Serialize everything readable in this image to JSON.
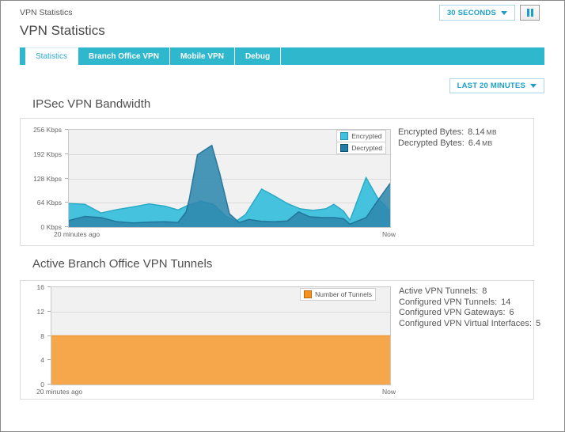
{
  "page": {
    "breadcrumb": "VPN Statistics",
    "title": "VPN Statistics",
    "refresh_interval": "30 SECONDS",
    "time_range": "LAST 20 MINUTES"
  },
  "tabs": [
    {
      "label": "Statistics",
      "active": true
    },
    {
      "label": "Branch Office VPN",
      "active": false
    },
    {
      "label": "Mobile VPN",
      "active": false
    },
    {
      "label": "Debug",
      "active": false
    }
  ],
  "sections": [
    {
      "title": "IPSec VPN Bandwidth",
      "stats": [
        {
          "label": "Encrypted Bytes:",
          "value": "8.14",
          "unit": "MB"
        },
        {
          "label": "Decrypted Bytes:",
          "value": "6.4",
          "unit": "MB"
        }
      ]
    },
    {
      "title": "Active Branch Office VPN Tunnels",
      "stats": [
        {
          "label": "Active VPN Tunnels:",
          "value": "8"
        },
        {
          "label": "Configured VPN Tunnels:",
          "value": "14"
        },
        {
          "label": "Configured VPN Gateways:",
          "value": "6"
        },
        {
          "label": "Configured VPN Virtual Interfaces:",
          "value": "5"
        }
      ]
    }
  ],
  "colors": {
    "tab_teal": "#2eb7cd",
    "accent_teal_text": "#1b9fc6",
    "encrypted": "#45c2de",
    "decrypted": "#3087af",
    "tunnels_orange": "#f7a74b"
  },
  "chart_data": [
    {
      "type": "area",
      "title": "IPSec VPN Bandwidth",
      "xlabel_left": "20 minutes ago",
      "xlabel_right": "Now",
      "x_range_minutes": 20,
      "ylim": [
        0,
        256
      ],
      "yticks": [
        0,
        64,
        128,
        192,
        256
      ],
      "ytick_labels": [
        "0 Kbps",
        "64 Kbps",
        "128 Kbps",
        "192 Kbps",
        "256 Kbps"
      ],
      "grid": true,
      "legend_position": "top-right",
      "series": [
        {
          "name": "Encrypted",
          "color": "#45c2de",
          "stroke": "#2aaac6",
          "swatch": "#3fc0dd",
          "swatch_border": "#2a93ad",
          "opacity": 1,
          "points": [
            [
              0,
              62
            ],
            [
              0.05,
              60
            ],
            [
              0.1,
              37
            ],
            [
              0.15,
              46
            ],
            [
              0.2,
              53
            ],
            [
              0.25,
              61
            ],
            [
              0.3,
              55
            ],
            [
              0.34,
              45
            ],
            [
              0.37,
              57
            ],
            [
              0.41,
              68
            ],
            [
              0.45,
              60
            ],
            [
              0.49,
              28
            ],
            [
              0.52,
              15
            ],
            [
              0.55,
              33
            ],
            [
              0.6,
              100
            ],
            [
              0.64,
              82
            ],
            [
              0.68,
              62
            ],
            [
              0.72,
              48
            ],
            [
              0.76,
              44
            ],
            [
              0.8,
              48
            ],
            [
              0.825,
              60
            ],
            [
              0.855,
              42
            ],
            [
              0.875,
              18
            ],
            [
              0.925,
              130
            ],
            [
              0.96,
              78
            ],
            [
              1,
              42
            ]
          ]
        },
        {
          "name": "Decrypted",
          "color": "#2f87ae",
          "stroke": "#1e6f95",
          "swatch": "#1f7da8",
          "swatch_border": "#14506b",
          "opacity": 0.88,
          "points": [
            [
              0,
              17
            ],
            [
              0.05,
              28
            ],
            [
              0.1,
              25
            ],
            [
              0.15,
              14
            ],
            [
              0.2,
              11
            ],
            [
              0.25,
              13
            ],
            [
              0.3,
              14
            ],
            [
              0.34,
              12
            ],
            [
              0.365,
              40
            ],
            [
              0.375,
              75
            ],
            [
              0.4,
              190
            ],
            [
              0.445,
              215
            ],
            [
              0.47,
              140
            ],
            [
              0.5,
              35
            ],
            [
              0.53,
              12
            ],
            [
              0.56,
              20
            ],
            [
              0.6,
              15
            ],
            [
              0.64,
              14
            ],
            [
              0.68,
              16
            ],
            [
              0.715,
              40
            ],
            [
              0.75,
              27
            ],
            [
              0.79,
              25
            ],
            [
              0.825,
              25
            ],
            [
              0.855,
              22
            ],
            [
              0.875,
              8
            ],
            [
              0.925,
              25
            ],
            [
              0.96,
              68
            ],
            [
              1,
              115
            ]
          ]
        }
      ]
    },
    {
      "type": "area",
      "title": "Active Branch Office VPN Tunnels",
      "xlabel_left": "20 minutes ago",
      "xlabel_right": "Now",
      "x_range_minutes": 20,
      "ylim": [
        0,
        16
      ],
      "yticks": [
        0,
        4,
        8,
        12,
        16
      ],
      "ytick_labels": [
        "0",
        "4",
        "8",
        "12",
        "16"
      ],
      "grid": true,
      "legend_position": "top-right",
      "series": [
        {
          "name": "Number of Tunnels",
          "color": "#f7a74b",
          "stroke": "#ec9634",
          "swatch": "#f6911d",
          "swatch_border": "#b96a10",
          "opacity": 1,
          "points": [
            [
              0,
              8
            ],
            [
              1,
              8
            ]
          ]
        }
      ]
    }
  ]
}
